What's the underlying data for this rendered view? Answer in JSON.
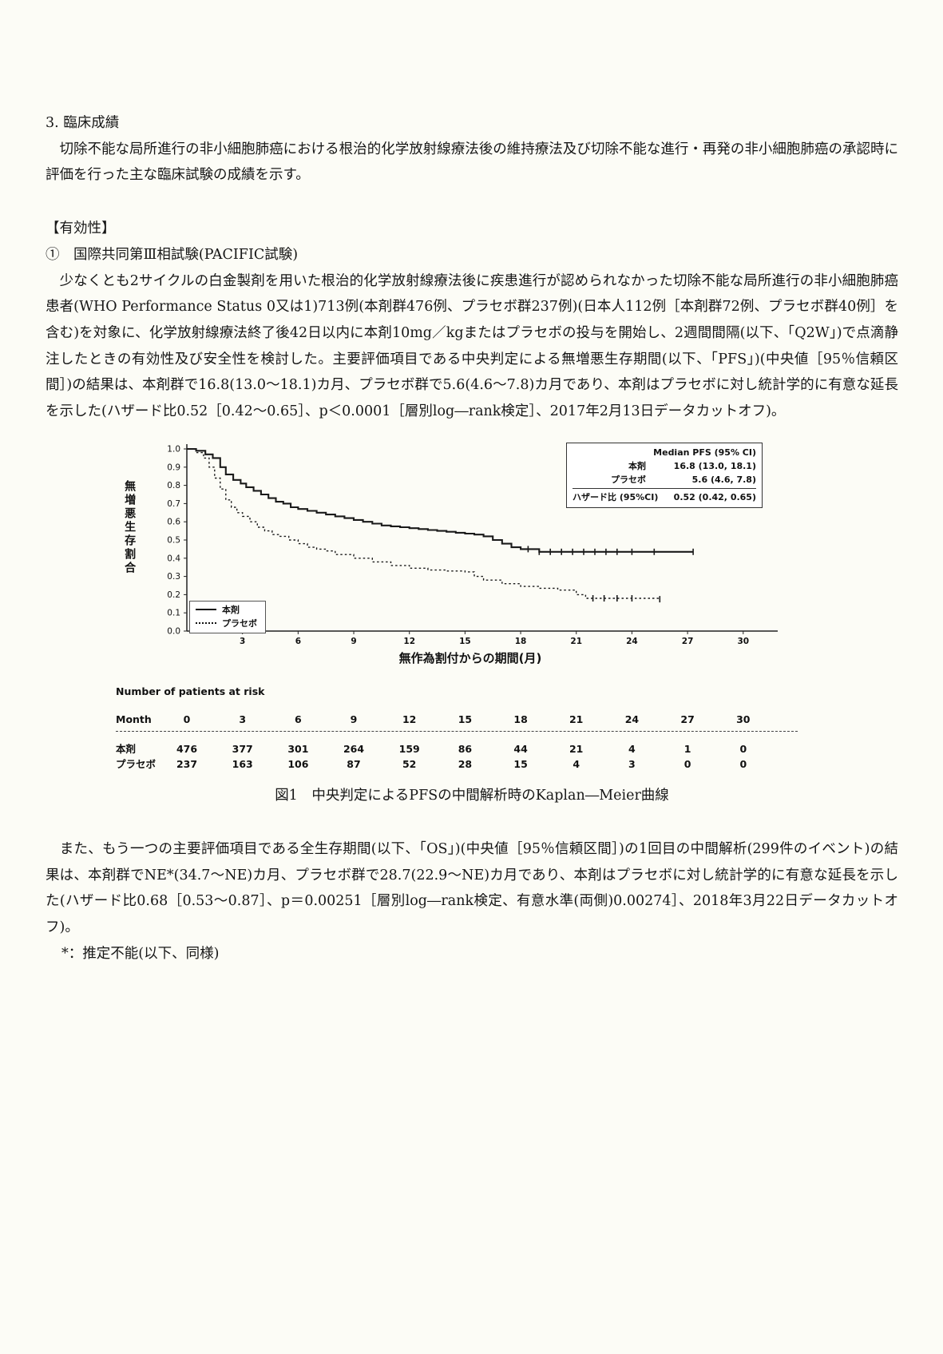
{
  "doc": {
    "section_heading": "3. 臨床成績",
    "intro": "　切除不能な局所進行の非小細胞肺癌における根治的化学放射線療法後の維持療法及び切除不能な進行・再発の非小細胞肺癌の承認時に評価を行った主な臨床試験の成績を示す。",
    "efficacy_heading": "【有効性】",
    "trial_heading": "①　国際共同第Ⅲ相試験(PACIFIC試験)",
    "trial_body": "　少なくとも2サイクルの白金製剤を用いた根治的化学放射線療法後に疾患進行が認められなかった切除不能な局所進行の非小細胞肺癌患者(WHO Performance Status 0又は1)713例(本剤群476例、プラセボ群237例)(日本人112例［本剤群72例、プラセボ群40例］を含む)を対象に、化学放射線療法終了後42日以内に本剤10mg／kgまたはプラセボの投与を開始し、2週間間隔(以下、「Q2W」)で点滴静注したときの有効性及び安全性を検討した。主要評価項目である中央判定による無増悪生存期間(以下、「PFS」)(中央値［95％信頼区間］)の結果は、本剤群で16.8(13.0〜18.1)カ月、プラセボ群で5.6(4.6〜7.8)カ月であり、本剤はプラセボに対し統計学的に有意な延長を示した(ハザード比0.52［0.42〜0.65］、p＜0.0001［層別log―rank検定］、2017年2月13日データカットオフ)。",
    "figure_caption": "図1　中央判定によるPFSの中間解析時のKaplan―Meier曲線",
    "os_body": "　また、もう一つの主要評価項目である全生存期間(以下、「OS」)(中央値［95％信頼区間］)の1回目の中間解析(299件のイベント)の結果は、本剤群でNE*(34.7〜NE)カ月、プラセボ群で28.7(22.9〜NE)カ月であり、本剤はプラセボに対し統計学的に有意な延長を示した(ハザード比0.68［0.53〜0.87］、p＝0.00251［層別log―rank検定、有意水準(両側)0.00274］、2018年3月22日データカットオフ)。",
    "footnote": "*：推定不能(以下、同様)"
  },
  "figure": {
    "y_axis_label": "無増悪生存割合",
    "x_axis_label": "無作為割付からの期間(月)",
    "legend": [
      {
        "label": "本剤",
        "style": "solid"
      },
      {
        "label": "プラセボ",
        "style": "dotted"
      }
    ],
    "stats_box": {
      "header": "Median PFS (95% CI)",
      "rows": [
        {
          "label": "本剤",
          "value": "16.8 (13.0, 18.1)"
        },
        {
          "label": "プラセボ",
          "value": "5.6 (4.6, 7.8)"
        },
        {
          "label": "ハザード比 (95%CI)",
          "value": "0.52 (0.42, 0.65)"
        }
      ]
    },
    "risk_table": {
      "title": "Number of patients at risk",
      "month_label": "Month",
      "months": [
        0,
        3,
        6,
        9,
        12,
        15,
        18,
        21,
        24,
        27,
        30
      ],
      "rows": [
        {
          "label": "本剤",
          "counts": [
            476,
            377,
            301,
            264,
            159,
            86,
            44,
            21,
            4,
            1,
            0
          ]
        },
        {
          "label": "プラセボ",
          "counts": [
            237,
            163,
            106,
            87,
            52,
            28,
            15,
            4,
            3,
            0,
            0
          ]
        }
      ]
    }
  },
  "chart_data": {
    "type": "line",
    "subtype": "kaplan-meier-step",
    "title": "",
    "xlabel": "無作為割付からの期間(月)",
    "ylabel": "無増悪生存割合",
    "xlim": [
      0,
      31
    ],
    "ylim": [
      0.0,
      1.0
    ],
    "x_ticks": [
      3,
      6,
      9,
      12,
      15,
      18,
      21,
      24,
      27,
      30
    ],
    "y_ticks": [
      0.0,
      0.1,
      0.2,
      0.3,
      0.4,
      0.5,
      0.6,
      0.7,
      0.8,
      0.9,
      1.0
    ],
    "grid": false,
    "legend_position": "lower-left",
    "series": [
      {
        "name": "本剤",
        "style": "solid",
        "median_pfs": "16.8 (13.0, 18.1)",
        "x": [
          0,
          0.5,
          1.0,
          1.4,
          1.8,
          2.1,
          2.5,
          2.9,
          3.2,
          3.6,
          4.0,
          4.4,
          4.8,
          5.2,
          5.6,
          6.0,
          6.5,
          7.0,
          7.5,
          8.0,
          8.5,
          9.0,
          9.5,
          10.0,
          10.5,
          11.0,
          11.5,
          12.0,
          12.5,
          13.0,
          13.5,
          14.0,
          14.5,
          15.0,
          15.5,
          16.0,
          16.5,
          17.0,
          17.5,
          18.0,
          19.0,
          27.3
        ],
        "y": [
          1.0,
          0.99,
          0.97,
          0.95,
          0.9,
          0.86,
          0.83,
          0.81,
          0.79,
          0.77,
          0.75,
          0.73,
          0.71,
          0.7,
          0.68,
          0.67,
          0.66,
          0.65,
          0.64,
          0.63,
          0.62,
          0.61,
          0.6,
          0.59,
          0.58,
          0.575,
          0.57,
          0.565,
          0.56,
          0.555,
          0.55,
          0.545,
          0.54,
          0.535,
          0.53,
          0.52,
          0.5,
          0.48,
          0.46,
          0.45,
          0.435,
          0.435
        ],
        "censor_x": [
          18.4,
          19.0,
          19.6,
          20.2,
          20.8,
          21.4,
          22.0,
          22.6,
          23.2,
          24.0,
          25.2,
          27.3
        ]
      },
      {
        "name": "プラセボ",
        "style": "dotted",
        "median_pfs": "5.6 (4.6, 7.8)",
        "x": [
          0,
          0.5,
          0.9,
          1.2,
          1.5,
          1.8,
          2.1,
          2.4,
          2.7,
          3.0,
          3.4,
          3.8,
          4.2,
          4.6,
          5.0,
          5.5,
          6.0,
          6.5,
          7.0,
          7.5,
          8.0,
          9.0,
          10.0,
          11.0,
          12.0,
          13.0,
          14.0,
          15.0,
          15.5,
          16.0,
          17.0,
          18.0,
          19.0,
          20.0,
          21.0,
          21.5,
          25.5
        ],
        "y": [
          1.0,
          0.98,
          0.95,
          0.9,
          0.84,
          0.78,
          0.72,
          0.68,
          0.65,
          0.63,
          0.6,
          0.57,
          0.55,
          0.53,
          0.52,
          0.5,
          0.48,
          0.46,
          0.45,
          0.44,
          0.42,
          0.4,
          0.38,
          0.36,
          0.345,
          0.335,
          0.33,
          0.325,
          0.3,
          0.28,
          0.26,
          0.245,
          0.235,
          0.225,
          0.2,
          0.18,
          0.175
        ],
        "censor_x": [
          21.9,
          22.5,
          23.2,
          24.0,
          25.5
        ]
      }
    ],
    "hazard_ratio": "0.52 (0.42, 0.65)"
  }
}
